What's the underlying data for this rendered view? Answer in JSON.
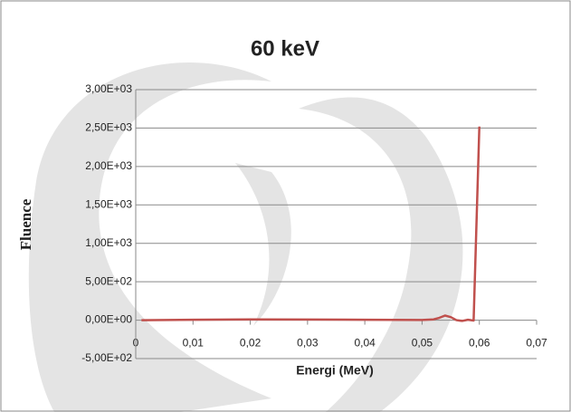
{
  "chart_data": {
    "type": "line",
    "title": "60 keV",
    "x_label": "Energi (MeV)",
    "y_label": "Fluence",
    "x": [
      0.001,
      0.01,
      0.02,
      0.03,
      0.04,
      0.05,
      0.052,
      0.053,
      0.054,
      0.055,
      0.056,
      0.057,
      0.058,
      0.059,
      0.06
    ],
    "series": [
      {
        "name": "Fluence",
        "color": "#c0504d",
        "values": [
          0,
          5,
          10,
          8,
          5,
          3,
          10,
          30,
          60,
          40,
          0,
          -10,
          5,
          -5,
          2520
        ]
      }
    ],
    "xlim": [
      0,
      0.07
    ],
    "xticks": [
      0,
      {
        "value": 0.01,
        "label": "0,01"
      },
      {
        "value": 0.02,
        "label": "0,02"
      },
      {
        "value": 0.03,
        "label": "0,03"
      },
      {
        "value": 0.04,
        "label": "0,04"
      },
      {
        "value": 0.05,
        "label": "0,05"
      },
      {
        "value": 0.06,
        "label": "0,06"
      },
      {
        "value": 0.07,
        "label": "0,07"
      }
    ],
    "ylim": [
      -500,
      3000
    ],
    "yticks": [
      {
        "value": -500,
        "label": "-5,00E+02"
      },
      {
        "value": 0,
        "label": "0,00E+00"
      },
      {
        "value": 500,
        "label": "5,00E+02"
      },
      {
        "value": 1000,
        "label": "1,00E+03"
      },
      {
        "value": 1500,
        "label": "1,50E+03"
      },
      {
        "value": 2000,
        "label": "2,00E+03"
      },
      {
        "value": 2500,
        "label": "2,50E+03"
      },
      {
        "value": 3000,
        "label": "3,00E+03"
      }
    ],
    "grid": true
  }
}
